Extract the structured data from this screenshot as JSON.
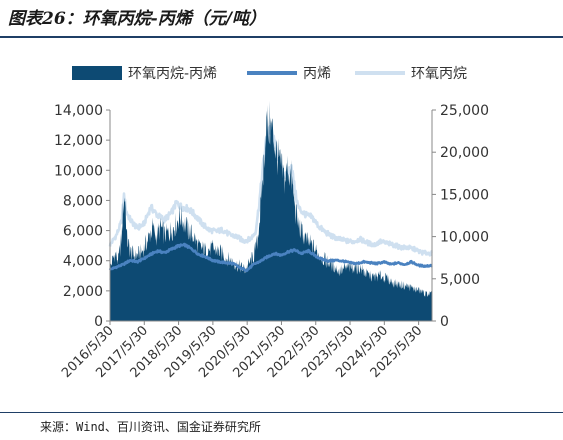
{
  "title": "图表26：环氧丙烷-丙烯（元/吨）",
  "source": "来源：Wind、百川资讯、国金证券研究所",
  "colors": {
    "spread": "#0d4a73",
    "propylene": "#4a82c0",
    "po": "#cfe0f0",
    "text": "#333333"
  },
  "chart_data": {
    "type": "area+line",
    "legend_position": "top",
    "grid": false,
    "x_tick_labels": [
      "2016/5/30",
      "2017/5/30",
      "2018/5/30",
      "2019/5/30",
      "2020/5/30",
      "2021/5/30",
      "2022/5/30",
      "2023/5/30",
      "2024/5/30",
      "2025/5/30"
    ],
    "x_range": [
      2016.41,
      2025.8
    ],
    "left_axis": {
      "range": [
        0,
        14000
      ],
      "ticks": [
        "0",
        "2,000",
        "4,000",
        "6,000",
        "8,000",
        "10,000",
        "12,000",
        "14,000"
      ]
    },
    "right_axis": {
      "range": [
        0,
        25000
      ],
      "ticks": [
        "0",
        "5,000",
        "10,000",
        "15,000",
        "20,000",
        "25,000"
      ]
    },
    "series": [
      {
        "name": "环氧丙烷-丙烯",
        "type": "area",
        "axis": "left",
        "points": [
          [
            2016.41,
            3500
          ],
          [
            2016.55,
            4500
          ],
          [
            2016.65,
            4000
          ],
          [
            2016.75,
            5500
          ],
          [
            2016.8,
            7800
          ],
          [
            2016.85,
            8300
          ],
          [
            2016.9,
            5500
          ],
          [
            2017.0,
            4600
          ],
          [
            2017.15,
            4300
          ],
          [
            2017.35,
            4600
          ],
          [
            2017.5,
            5300
          ],
          [
            2017.65,
            6200
          ],
          [
            2017.75,
            5600
          ],
          [
            2017.9,
            6200
          ],
          [
            2018.0,
            5700
          ],
          [
            2018.15,
            5900
          ],
          [
            2018.3,
            6300
          ],
          [
            2018.45,
            7000
          ],
          [
            2018.55,
            6600
          ],
          [
            2018.7,
            6000
          ],
          [
            2018.85,
            5600
          ],
          [
            2019.0,
            4900
          ],
          [
            2019.2,
            4700
          ],
          [
            2019.4,
            4800
          ],
          [
            2019.6,
            4600
          ],
          [
            2019.8,
            4200
          ],
          [
            2020.0,
            3900
          ],
          [
            2020.2,
            3600
          ],
          [
            2020.35,
            3400
          ],
          [
            2020.5,
            3900
          ],
          [
            2020.6,
            4300
          ],
          [
            2020.7,
            5200
          ],
          [
            2020.8,
            7400
          ],
          [
            2020.9,
            10500
          ],
          [
            2020.95,
            12800
          ],
          [
            2021.05,
            13000
          ],
          [
            2021.15,
            12600
          ],
          [
            2021.25,
            11300
          ],
          [
            2021.35,
            10500
          ],
          [
            2021.5,
            9400
          ],
          [
            2021.6,
            10200
          ],
          [
            2021.7,
            9500
          ],
          [
            2021.8,
            7600
          ],
          [
            2021.9,
            6400
          ],
          [
            2022.0,
            5900
          ],
          [
            2022.15,
            5300
          ],
          [
            2022.3,
            5000
          ],
          [
            2022.5,
            4400
          ],
          [
            2022.7,
            4000
          ],
          [
            2022.9,
            3700
          ],
          [
            2023.1,
            3300
          ],
          [
            2023.3,
            3500
          ],
          [
            2023.5,
            3600
          ],
          [
            2023.7,
            3500
          ],
          [
            2023.9,
            3100
          ],
          [
            2024.1,
            2900
          ],
          [
            2024.3,
            3000
          ],
          [
            2024.5,
            2800
          ],
          [
            2024.7,
            2500
          ],
          [
            2024.9,
            2400
          ],
          [
            2025.1,
            2300
          ],
          [
            2025.3,
            2100
          ],
          [
            2025.45,
            2000
          ],
          [
            2025.6,
            1800
          ],
          [
            2025.8,
            1800
          ]
        ]
      },
      {
        "name": "丙烯",
        "type": "line",
        "axis": "right",
        "points": [
          [
            2016.41,
            6100
          ],
          [
            2016.6,
            6400
          ],
          [
            2016.8,
            6700
          ],
          [
            2017.0,
            7200
          ],
          [
            2017.2,
            7000
          ],
          [
            2017.4,
            7400
          ],
          [
            2017.6,
            7900
          ],
          [
            2017.8,
            8300
          ],
          [
            2018.0,
            8100
          ],
          [
            2018.2,
            8500
          ],
          [
            2018.4,
            8900
          ],
          [
            2018.6,
            9000
          ],
          [
            2018.8,
            8500
          ],
          [
            2019.0,
            7900
          ],
          [
            2019.2,
            7600
          ],
          [
            2019.4,
            7200
          ],
          [
            2019.6,
            7000
          ],
          [
            2019.8,
            6900
          ],
          [
            2020.0,
            6800
          ],
          [
            2020.2,
            6300
          ],
          [
            2020.4,
            6000
          ],
          [
            2020.6,
            6700
          ],
          [
            2020.8,
            7100
          ],
          [
            2021.0,
            7600
          ],
          [
            2021.2,
            8000
          ],
          [
            2021.4,
            7800
          ],
          [
            2021.6,
            8200
          ],
          [
            2021.8,
            8400
          ],
          [
            2022.0,
            8000
          ],
          [
            2022.2,
            8300
          ],
          [
            2022.4,
            7700
          ],
          [
            2022.6,
            7300
          ],
          [
            2022.8,
            7100
          ],
          [
            2023.0,
            7200
          ],
          [
            2023.2,
            7100
          ],
          [
            2023.4,
            6900
          ],
          [
            2023.6,
            6800
          ],
          [
            2023.8,
            7000
          ],
          [
            2024.0,
            6900
          ],
          [
            2024.2,
            6800
          ],
          [
            2024.4,
            7000
          ],
          [
            2024.6,
            6700
          ],
          [
            2024.8,
            6900
          ],
          [
            2025.0,
            6700
          ],
          [
            2025.2,
            7000
          ],
          [
            2025.4,
            6600
          ],
          [
            2025.6,
            6500
          ],
          [
            2025.8,
            6600
          ]
        ]
      },
      {
        "name": "环氧丙烷",
        "type": "line",
        "axis": "right",
        "points": [
          [
            2016.41,
            9000
          ],
          [
            2016.6,
            10200
          ],
          [
            2016.75,
            11800
          ],
          [
            2016.82,
            15000
          ],
          [
            2016.88,
            13000
          ],
          [
            2017.0,
            12000
          ],
          [
            2017.2,
            11000
          ],
          [
            2017.4,
            11500
          ],
          [
            2017.6,
            13500
          ],
          [
            2017.8,
            12500
          ],
          [
            2018.0,
            12000
          ],
          [
            2018.2,
            12800
          ],
          [
            2018.35,
            14000
          ],
          [
            2018.5,
            13500
          ],
          [
            2018.7,
            13300
          ],
          [
            2018.9,
            12500
          ],
          [
            2019.1,
            11500
          ],
          [
            2019.3,
            10800
          ],
          [
            2019.5,
            10600
          ],
          [
            2019.7,
            10800
          ],
          [
            2019.9,
            10200
          ],
          [
            2020.1,
            10000
          ],
          [
            2020.3,
            9500
          ],
          [
            2020.5,
            9700
          ],
          [
            2020.65,
            10500
          ],
          [
            2020.75,
            13500
          ],
          [
            2020.85,
            17500
          ],
          [
            2020.95,
            21000
          ],
          [
            2021.05,
            23000
          ],
          [
            2021.15,
            22000
          ],
          [
            2021.25,
            20500
          ],
          [
            2021.4,
            18000
          ],
          [
            2021.55,
            17000
          ],
          [
            2021.7,
            18500
          ],
          [
            2021.8,
            15500
          ],
          [
            2021.9,
            13500
          ],
          [
            2022.0,
            13000
          ],
          [
            2022.15,
            12500
          ],
          [
            2022.3,
            12300
          ],
          [
            2022.5,
            11200
          ],
          [
            2022.7,
            10500
          ],
          [
            2022.9,
            10000
          ],
          [
            2023.1,
            9700
          ],
          [
            2023.3,
            9500
          ],
          [
            2023.5,
            9400
          ],
          [
            2023.7,
            9700
          ],
          [
            2023.9,
            9300
          ],
          [
            2024.1,
            9000
          ],
          [
            2024.3,
            9400
          ],
          [
            2024.5,
            9200
          ],
          [
            2024.7,
            9000
          ],
          [
            2024.9,
            8700
          ],
          [
            2025.1,
            8700
          ],
          [
            2025.3,
            8500
          ],
          [
            2025.5,
            8100
          ],
          [
            2025.8,
            8000
          ]
        ]
      }
    ]
  }
}
